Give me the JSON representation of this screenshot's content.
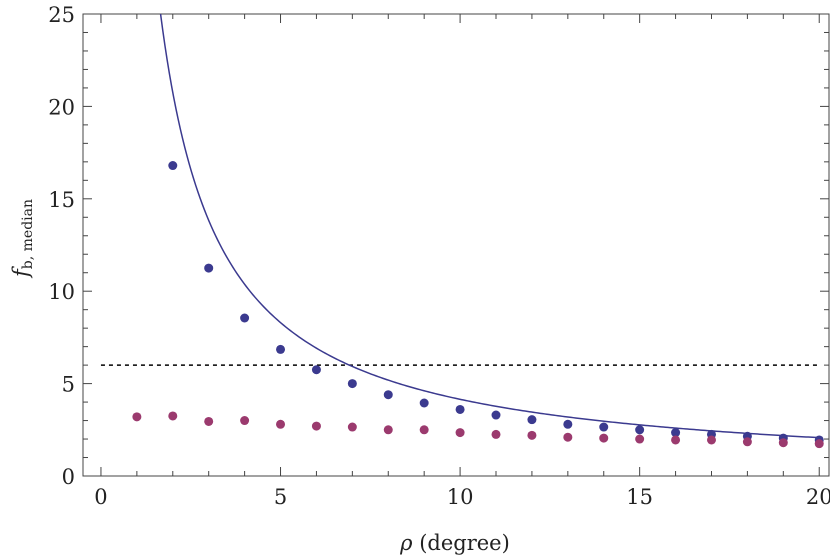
{
  "chart_data": {
    "type": "scatter",
    "xlabel_symbol": "ρ",
    "xlabel_unit": " (degree)",
    "ylabel_main": "f",
    "ylabel_sub": "b, median",
    "xlim": [
      -0.5,
      20.3
    ],
    "ylim": [
      0,
      25
    ],
    "xticks": [
      0,
      5,
      10,
      15,
      20
    ],
    "yticks": [
      0,
      5,
      10,
      15,
      20,
      25
    ],
    "grid": false,
    "series": [
      {
        "color": "#3b3a8f",
        "points": [
          [
            2,
            16.8
          ],
          [
            3,
            11.25
          ],
          [
            4,
            8.55
          ],
          [
            5,
            6.85
          ],
          [
            6,
            5.75
          ],
          [
            7,
            5.0
          ],
          [
            8,
            4.4
          ],
          [
            9,
            3.95
          ],
          [
            10,
            3.6
          ],
          [
            11,
            3.3
          ],
          [
            12,
            3.05
          ],
          [
            13,
            2.8
          ],
          [
            14,
            2.65
          ],
          [
            15,
            2.5
          ],
          [
            16,
            2.35
          ],
          [
            17,
            2.25
          ],
          [
            18,
            2.15
          ],
          [
            19,
            2.05
          ],
          [
            20,
            1.95
          ]
        ]
      },
      {
        "color": "#9b3a6e",
        "points": [
          [
            1,
            3.2
          ],
          [
            2,
            3.25
          ],
          [
            3,
            2.95
          ],
          [
            4,
            3.0
          ],
          [
            5,
            2.8
          ],
          [
            6,
            2.7
          ],
          [
            7,
            2.65
          ],
          [
            8,
            2.5
          ],
          [
            9,
            2.5
          ],
          [
            10,
            2.35
          ],
          [
            11,
            2.25
          ],
          [
            12,
            2.2
          ],
          [
            13,
            2.1
          ],
          [
            14,
            2.05
          ],
          [
            15,
            2.0
          ],
          [
            16,
            1.95
          ],
          [
            17,
            1.95
          ],
          [
            18,
            1.85
          ],
          [
            19,
            1.8
          ],
          [
            20,
            1.75
          ]
        ]
      }
    ],
    "fit_curve": {
      "color": "#3b3a8f",
      "form": "y = a / x",
      "a": 41.5,
      "x_range": [
        1.6,
        20
      ]
    },
    "reference_line": {
      "y": 6,
      "style": "dotted",
      "color": "#000000",
      "x_range": [
        0,
        20
      ]
    }
  }
}
